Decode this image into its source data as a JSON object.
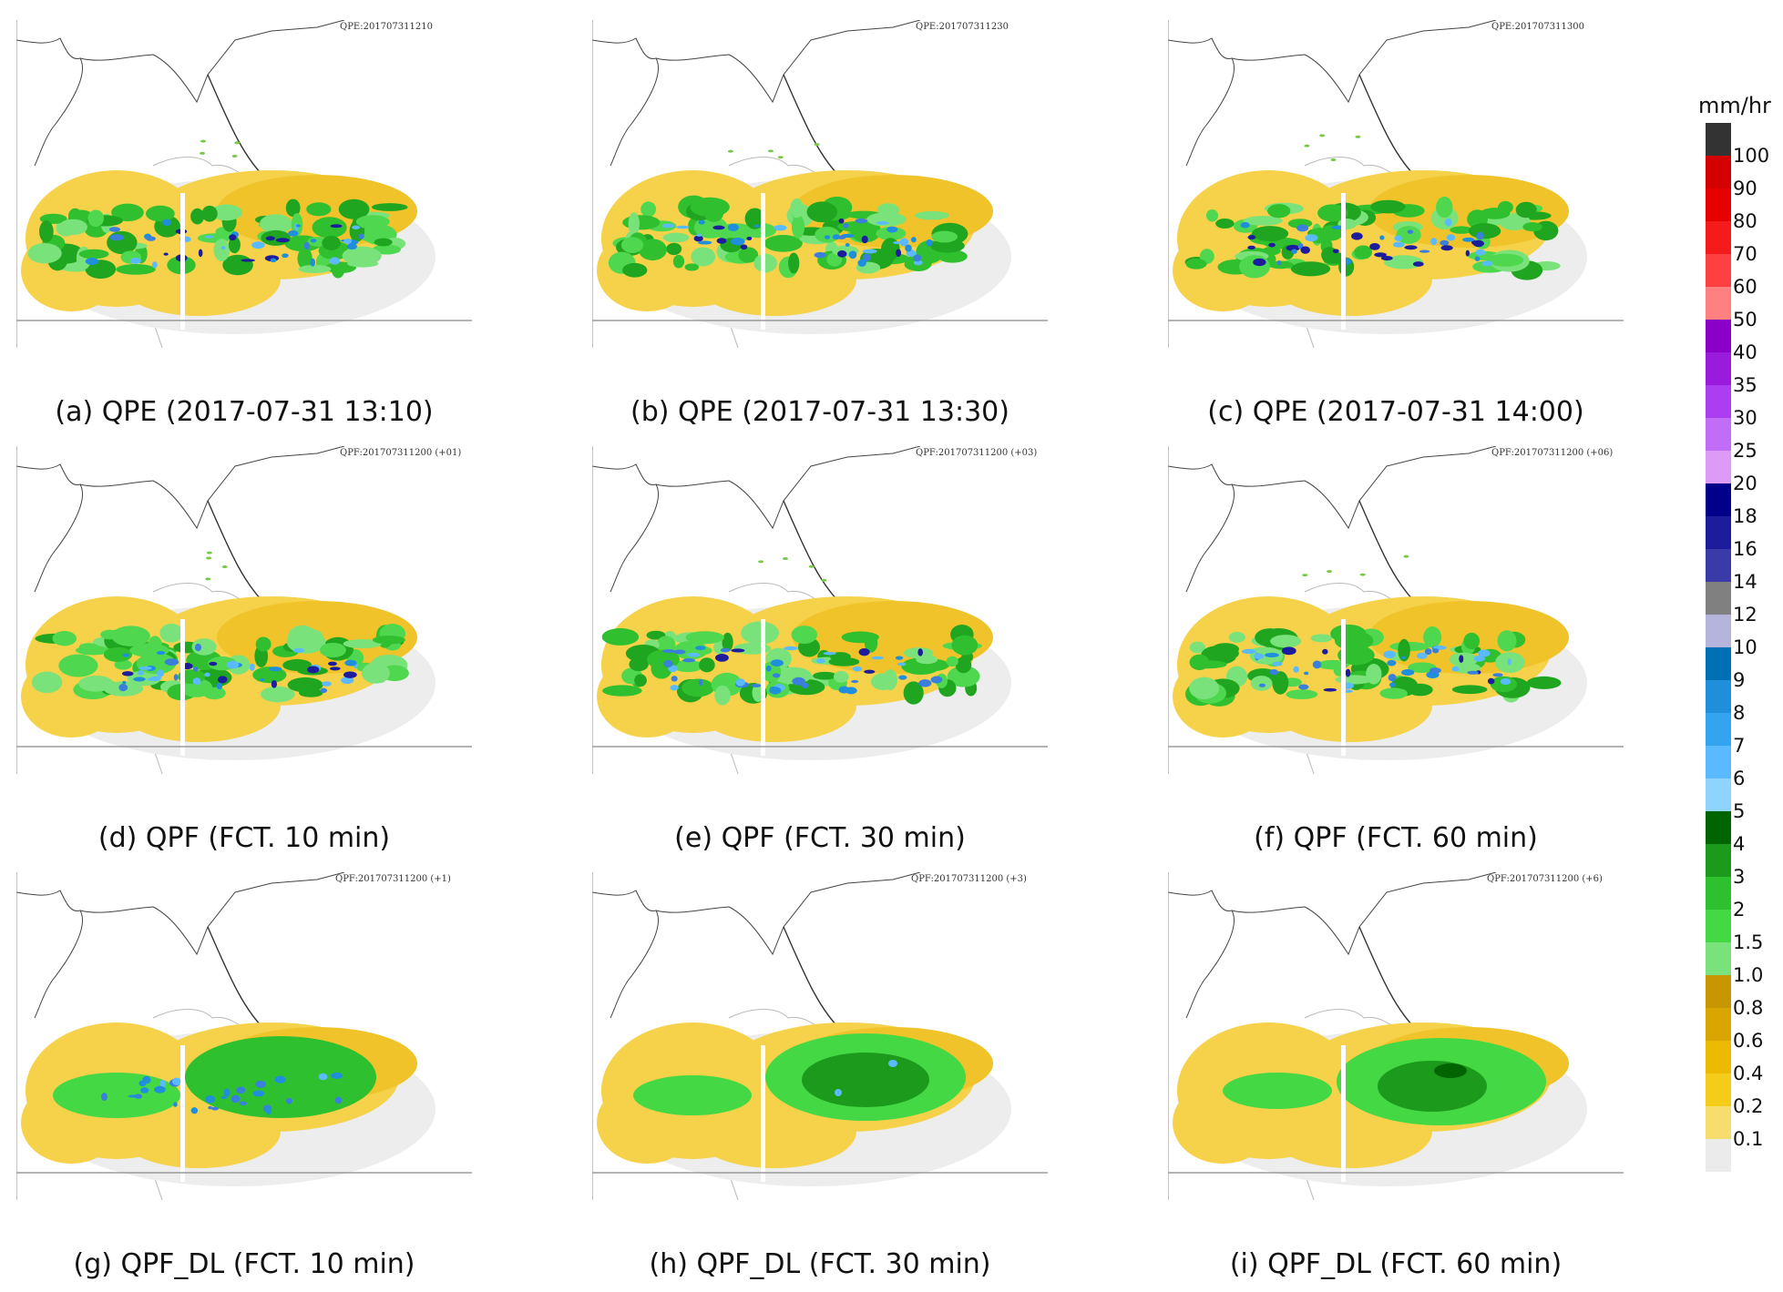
{
  "panels": [
    {
      "stamp": "QPE:201707311210",
      "caption": "(a) QPE (2017-07-31 13:10)",
      "intensity": "qpe",
      "variant": 0
    },
    {
      "stamp": "QPE:201707311230",
      "caption": "(b) QPE (2017-07-31 13:30)",
      "intensity": "qpe",
      "variant": 1
    },
    {
      "stamp": "QPE:201707311300",
      "caption": "(c) QPE (2017-07-31 14:00)",
      "intensity": "qpe",
      "variant": 2
    },
    {
      "stamp": "QPF:201707311200 (+01)",
      "caption": "(d) QPF (FCT. 10 min)",
      "intensity": "qpf",
      "variant": 0
    },
    {
      "stamp": "QPF:201707311200 (+03)",
      "caption": "(e) QPF (FCT. 30 min)",
      "intensity": "qpf",
      "variant": 1
    },
    {
      "stamp": "QPF:201707311200 (+06)",
      "caption": "(f) QPF (FCT. 60 min)",
      "intensity": "qpf",
      "variant": 2
    },
    {
      "stamp": "QPF:201707311200 (+1)",
      "caption": "(g) QPF_DL (FCT. 10 min)",
      "intensity": "dl1",
      "variant": 0
    },
    {
      "stamp": "QPF:201707311200 (+3)",
      "caption": "(h) QPF_DL (FCT. 30 min)",
      "intensity": "dl3",
      "variant": 1
    },
    {
      "stamp": "QPF:201707311200 (+6)",
      "caption": "(i) QPF_DL (FCT. 60 min)",
      "intensity": "dl6",
      "variant": 2
    }
  ],
  "legend": {
    "unit": "mm/hr",
    "levels": [
      "100",
      "90",
      "80",
      "70",
      "60",
      "50",
      "40",
      "35",
      "30",
      "25",
      "20",
      "18",
      "16",
      "14",
      "12",
      "10",
      "9",
      "8",
      "7",
      "6",
      "5",
      "4",
      "3",
      "2",
      "1.5",
      "1.0",
      "0.8",
      "0.6",
      "0.4",
      "0.2",
      "0.1"
    ],
    "colors": [
      "#333333",
      "#d40000",
      "#e60000",
      "#f51b1b",
      "#ff4040",
      "#ff8080",
      "#8a00c9",
      "#9b1bdc",
      "#ad3df0",
      "#c26df7",
      "#dd9af7",
      "#00008b",
      "#1c1c9c",
      "#3a3aa8",
      "#808080",
      "#b4b4dc",
      "#0070b4",
      "#1f8fdc",
      "#33a4f0",
      "#5bbaff",
      "#8fd4ff",
      "#006400",
      "#1b9a1b",
      "#2fc02f",
      "#44d844",
      "#7ae27a",
      "#c89600",
      "#d9a600",
      "#ecba00",
      "#f5cc1a",
      "#f7dc6e",
      "#ebebeb"
    ]
  }
}
